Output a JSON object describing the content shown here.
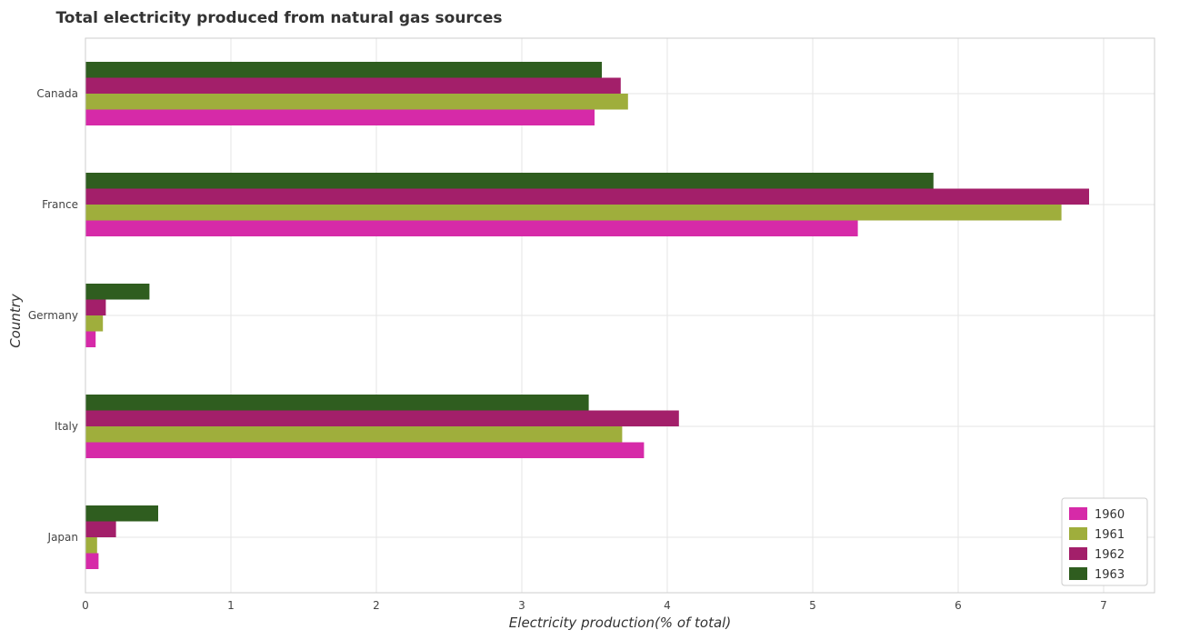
{
  "chart_data": {
    "type": "bar",
    "orientation": "horizontal",
    "title": "Total electricity produced from natural gas sources",
    "xlabel": "Electricity production(% of total)",
    "ylabel": "Country",
    "categories": [
      "Canada",
      "France",
      "Germany",
      "Italy",
      "Japan"
    ],
    "xlim": [
      0,
      7.35
    ],
    "xticks": [
      0,
      1,
      2,
      3,
      4,
      5,
      6,
      7
    ],
    "grid": true,
    "legend_position": "bottom-right",
    "series": [
      {
        "name": "1960",
        "color": "#d62aa8",
        "values": [
          3.5,
          5.31,
          0.07,
          3.84,
          0.09
        ]
      },
      {
        "name": "1961",
        "color": "#9fae3c",
        "values": [
          3.73,
          6.71,
          0.12,
          3.69,
          0.08
        ]
      },
      {
        "name": "1962",
        "color": "#a31f6a",
        "values": [
          3.68,
          6.9,
          0.14,
          4.08,
          0.21
        ]
      },
      {
        "name": "1963",
        "color": "#2f5d1f",
        "values": [
          3.55,
          5.83,
          0.44,
          3.46,
          0.5
        ]
      }
    ]
  }
}
